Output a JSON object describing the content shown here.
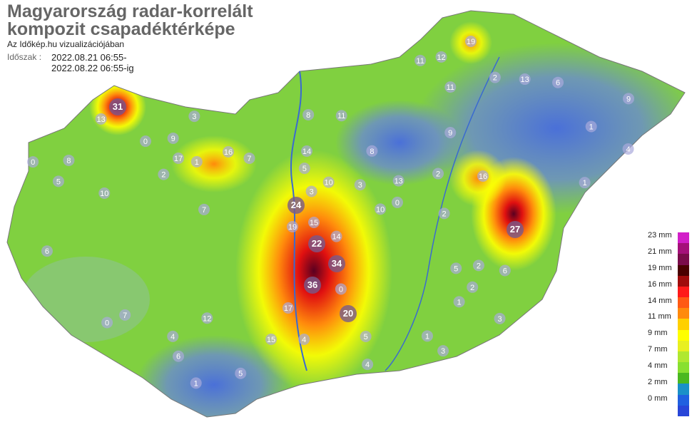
{
  "header": {
    "title_line1": "Magyarország radar-korrelált",
    "title_line2": "kompozit csapadéktérképe",
    "subtitle": "Az Időkép.hu vizualizációjában",
    "period_label": "Időszak :",
    "period_from": "2022.08.21 06:55-",
    "period_to": "2022.08.22 06:55-ig"
  },
  "legend": {
    "labels": [
      "23 mm",
      "21 mm",
      "19 mm",
      "16 mm",
      "14 mm",
      "11 mm",
      "9 mm",
      "7 mm",
      "4 mm",
      "2 mm",
      "0 mm"
    ],
    "colors": [
      "#d21fc8",
      "#a5107a",
      "#7a0b4a",
      "#4a0000",
      "#a00c0c",
      "#ff1a1a",
      "#ff5a14",
      "#ff8a0c",
      "#ffd000",
      "#ffff00",
      "#e8f020",
      "#b0e830",
      "#88e030",
      "#4ab820",
      "#1a90c8",
      "#2060e0",
      "#2846d8"
    ]
  },
  "map": {
    "region": "Magyarország",
    "stations": [
      31,
      27,
      36,
      34,
      24,
      22,
      20,
      19,
      19,
      17,
      17,
      16,
      16,
      15,
      15,
      14,
      14,
      13,
      13,
      12,
      12,
      11,
      11,
      10,
      10,
      9,
      9,
      8,
      8,
      7,
      7,
      6,
      6,
      5,
      5,
      4,
      4,
      3,
      3,
      2,
      2,
      1,
      1,
      0,
      0,
      0,
      1,
      2,
      3,
      4,
      5,
      6,
      7,
      8,
      9,
      13,
      11,
      10,
      5,
      2,
      1,
      0,
      6,
      5,
      4,
      3,
      2,
      1,
      0,
      1,
      2,
      3
    ]
  }
}
